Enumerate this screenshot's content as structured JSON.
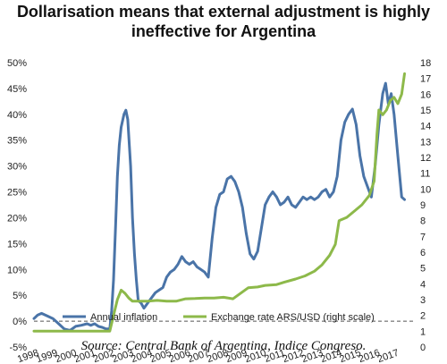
{
  "title": {
    "line1": "Dollarisation means that external adjustment is highly",
    "line2": "ineffective for Argentina"
  },
  "source": "Source: Central Bank of Argentina, Indice Congreso.",
  "colors": {
    "inflation": "#4a74a8",
    "exchange": "#8db94a",
    "zero_line": "#555555"
  },
  "chart_data": {
    "type": "line",
    "title": "Dollarisation means that external adjustment is highly ineffective for Argentina",
    "xlabel": "",
    "ylabel": "",
    "x_ticks": [
      "1998",
      "1999",
      "2000",
      "2001",
      "2002",
      "2003",
      "2004",
      "2005",
      "2006",
      "2007",
      "2008",
      "2009",
      "2010",
      "2011",
      "2012",
      "2013",
      "2014",
      "2015",
      "2016",
      "2017"
    ],
    "left_axis": {
      "ticks": [
        "-5%",
        "0%",
        "5%",
        "10%",
        "15%",
        "20%",
        "25%",
        "30%",
        "35%",
        "40%",
        "45%",
        "50%"
      ],
      "ylim": [
        -5,
        50
      ],
      "unit": "%"
    },
    "right_axis": {
      "ticks": [
        "0",
        "1",
        "2",
        "3",
        "4",
        "5",
        "6",
        "7",
        "8",
        "9",
        "10",
        "11",
        "12",
        "13",
        "14",
        "15",
        "16",
        "17",
        "18"
      ],
      "ylim": [
        0,
        18
      ]
    },
    "zero_line": {
      "axis": "left",
      "y": 0,
      "style": "dashed"
    },
    "legend": {
      "position": "bottom"
    },
    "series": [
      {
        "name": "Annual inflation",
        "axis": "left",
        "points": [
          [
            1998.0,
            0.5
          ],
          [
            1998.2,
            1.2
          ],
          [
            1998.4,
            1.5
          ],
          [
            1998.7,
            1.0
          ],
          [
            1999.0,
            0.5
          ],
          [
            1999.3,
            -0.5
          ],
          [
            1999.6,
            -1.5
          ],
          [
            1999.9,
            -1.8
          ],
          [
            2000.2,
            -1.0
          ],
          [
            2000.5,
            -0.8
          ],
          [
            2000.8,
            -0.5
          ],
          [
            2001.0,
            -0.8
          ],
          [
            2001.2,
            -0.5
          ],
          [
            2001.4,
            -1.0
          ],
          [
            2001.6,
            -1.2
          ],
          [
            2001.8,
            -1.5
          ],
          [
            2002.0,
            -1.5
          ],
          [
            2002.1,
            2.0
          ],
          [
            2002.2,
            8.0
          ],
          [
            2002.3,
            18.0
          ],
          [
            2002.4,
            28.0
          ],
          [
            2002.5,
            34.0
          ],
          [
            2002.6,
            37.5
          ],
          [
            2002.75,
            40.0
          ],
          [
            2002.85,
            40.8
          ],
          [
            2002.95,
            39.0
          ],
          [
            2003.1,
            30.0
          ],
          [
            2003.2,
            20.0
          ],
          [
            2003.3,
            13.0
          ],
          [
            2003.4,
            8.0
          ],
          [
            2003.5,
            4.0
          ],
          [
            2003.65,
            3.5
          ],
          [
            2003.8,
            2.5
          ],
          [
            2004.0,
            3.5
          ],
          [
            2004.2,
            4.5
          ],
          [
            2004.4,
            5.5
          ],
          [
            2004.6,
            6.0
          ],
          [
            2004.8,
            6.5
          ],
          [
            2005.0,
            8.5
          ],
          [
            2005.2,
            9.5
          ],
          [
            2005.4,
            10.0
          ],
          [
            2005.6,
            11.0
          ],
          [
            2005.8,
            12.5
          ],
          [
            2006.0,
            11.5
          ],
          [
            2006.2,
            11.0
          ],
          [
            2006.4,
            11.5
          ],
          [
            2006.6,
            10.5
          ],
          [
            2006.8,
            10.0
          ],
          [
            2007.0,
            9.5
          ],
          [
            2007.2,
            8.5
          ],
          [
            2007.4,
            16.0
          ],
          [
            2007.6,
            22.0
          ],
          [
            2007.8,
            24.5
          ],
          [
            2008.0,
            25.0
          ],
          [
            2008.2,
            27.5
          ],
          [
            2008.4,
            28.0
          ],
          [
            2008.6,
            27.0
          ],
          [
            2008.8,
            25.0
          ],
          [
            2009.0,
            22.0
          ],
          [
            2009.2,
            17.0
          ],
          [
            2009.4,
            13.0
          ],
          [
            2009.6,
            12.0
          ],
          [
            2009.8,
            13.5
          ],
          [
            2010.0,
            18.0
          ],
          [
            2010.2,
            22.5
          ],
          [
            2010.4,
            24.0
          ],
          [
            2010.6,
            25.0
          ],
          [
            2010.8,
            24.0
          ],
          [
            2011.0,
            22.5
          ],
          [
            2011.2,
            23.0
          ],
          [
            2011.4,
            24.0
          ],
          [
            2011.6,
            22.5
          ],
          [
            2011.8,
            22.0
          ],
          [
            2012.0,
            23.0
          ],
          [
            2012.2,
            24.0
          ],
          [
            2012.4,
            23.5
          ],
          [
            2012.6,
            24.0
          ],
          [
            2012.8,
            23.5
          ],
          [
            2013.0,
            24.0
          ],
          [
            2013.2,
            25.0
          ],
          [
            2013.4,
            25.5
          ],
          [
            2013.6,
            24.0
          ],
          [
            2013.8,
            25.0
          ],
          [
            2014.0,
            28.0
          ],
          [
            2014.2,
            35.0
          ],
          [
            2014.4,
            38.5
          ],
          [
            2014.6,
            40.0
          ],
          [
            2014.8,
            41.0
          ],
          [
            2015.0,
            38.0
          ],
          [
            2015.2,
            32.0
          ],
          [
            2015.4,
            28.0
          ],
          [
            2015.6,
            26.0
          ],
          [
            2015.8,
            24.0
          ],
          [
            2016.0,
            30.0
          ],
          [
            2016.2,
            38.0
          ],
          [
            2016.4,
            44.0
          ],
          [
            2016.55,
            46.0
          ],
          [
            2016.7,
            42.0
          ],
          [
            2016.85,
            44.0
          ],
          [
            2017.0,
            40.0
          ],
          [
            2017.2,
            32.0
          ],
          [
            2017.4,
            24.0
          ],
          [
            2017.55,
            23.5
          ]
        ]
      },
      {
        "name": "Exchange rate ARS/USD (right scale)",
        "axis": "right",
        "points": [
          [
            1998.0,
            1.0
          ],
          [
            2002.0,
            1.0
          ],
          [
            2002.2,
            2.0
          ],
          [
            2002.4,
            3.0
          ],
          [
            2002.6,
            3.6
          ],
          [
            2002.8,
            3.4
          ],
          [
            2003.0,
            3.1
          ],
          [
            2003.2,
            2.9
          ],
          [
            2003.6,
            2.9
          ],
          [
            2004.0,
            2.9
          ],
          [
            2004.5,
            2.95
          ],
          [
            2005.0,
            2.9
          ],
          [
            2005.5,
            2.9
          ],
          [
            2006.0,
            3.05
          ],
          [
            2006.5,
            3.07
          ],
          [
            2007.0,
            3.1
          ],
          [
            2007.5,
            3.1
          ],
          [
            2008.0,
            3.15
          ],
          [
            2008.5,
            3.05
          ],
          [
            2008.9,
            3.4
          ],
          [
            2009.3,
            3.75
          ],
          [
            2009.8,
            3.8
          ],
          [
            2010.2,
            3.9
          ],
          [
            2010.8,
            3.95
          ],
          [
            2011.2,
            4.1
          ],
          [
            2011.8,
            4.3
          ],
          [
            2012.3,
            4.5
          ],
          [
            2012.8,
            4.8
          ],
          [
            2013.2,
            5.2
          ],
          [
            2013.6,
            5.8
          ],
          [
            2013.9,
            6.5
          ],
          [
            2014.1,
            8.0
          ],
          [
            2014.5,
            8.2
          ],
          [
            2014.9,
            8.6
          ],
          [
            2015.3,
            9.0
          ],
          [
            2015.7,
            9.6
          ],
          [
            2015.95,
            10.5
          ],
          [
            2016.1,
            13.5
          ],
          [
            2016.2,
            15.0
          ],
          [
            2016.4,
            14.7
          ],
          [
            2016.6,
            15.0
          ],
          [
            2016.8,
            15.6
          ],
          [
            2017.0,
            15.8
          ],
          [
            2017.2,
            15.4
          ],
          [
            2017.4,
            16.0
          ],
          [
            2017.55,
            17.3
          ]
        ]
      }
    ]
  }
}
